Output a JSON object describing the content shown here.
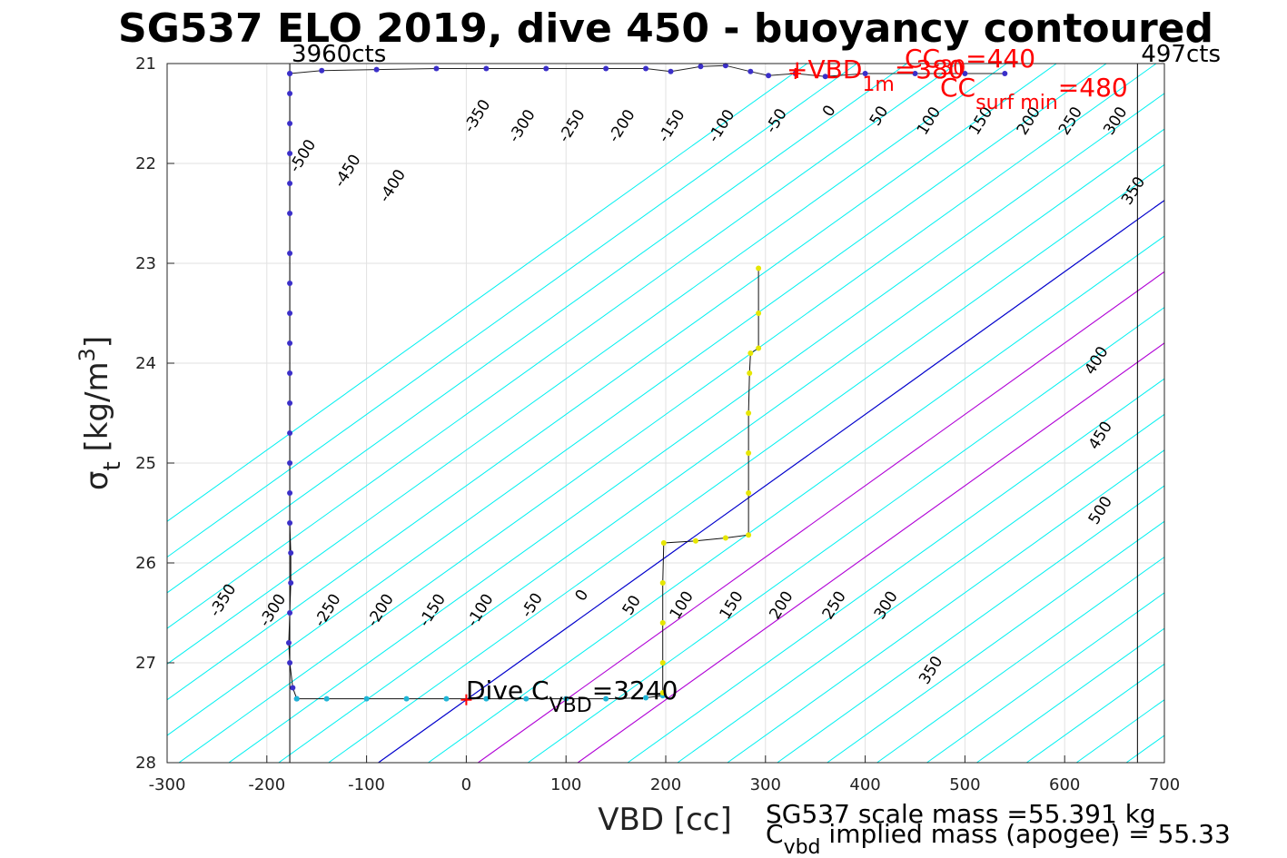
{
  "chart_data": {
    "type": "scatter",
    "title": "SG537 ELO 2019, dive 450 - buoyancy contoured",
    "xlabel": "VBD [cc]",
    "ylabel_main": "σ",
    "ylabel_sub": "t",
    "ylabel_unit": " [kg/m",
    "ylabel_sup": "3",
    "ylabel_close": "]",
    "xlim": [
      -300,
      700
    ],
    "ylim": [
      21,
      28
    ],
    "y_reversed": true,
    "grid": true,
    "xticks": [
      -300,
      -200,
      -100,
      0,
      100,
      200,
      300,
      400,
      500,
      600,
      700
    ],
    "yticks": [
      21,
      22,
      23,
      24,
      25,
      26,
      27,
      28
    ],
    "buoyancy_contours": {
      "levels": [
        -550,
        -500,
        -450,
        -400,
        -350,
        -300,
        -250,
        -200,
        -150,
        -100,
        -50,
        0,
        50,
        100,
        150,
        200,
        250,
        300,
        350,
        400,
        450,
        500,
        550,
        600,
        650,
        700,
        750,
        800,
        850
      ],
      "zero_contour_color": "#0000cc",
      "highlight_levels": [
        100,
        200
      ],
      "highlight_color": "#b000d6",
      "contour_color": "#00f0f0",
      "labels_upper": [
        {
          "text": "-500",
          "x": -160,
          "y": 21.95
        },
        {
          "text": "-450",
          "x": -115,
          "y": 22.1
        },
        {
          "text": "-400",
          "x": -70,
          "y": 22.25
        },
        {
          "text": "-350",
          "x": 15,
          "y": 21.55
        },
        {
          "text": "-300",
          "x": 60,
          "y": 21.65
        },
        {
          "text": "-250",
          "x": 110,
          "y": 21.65
        },
        {
          "text": "-200",
          "x": 160,
          "y": 21.65
        },
        {
          "text": "-150",
          "x": 210,
          "y": 21.65
        },
        {
          "text": "-100",
          "x": 260,
          "y": 21.65
        },
        {
          "text": "-50",
          "x": 315,
          "y": 21.6
        },
        {
          "text": "0",
          "x": 368,
          "y": 21.5
        },
        {
          "text": "50",
          "x": 418,
          "y": 21.55
        },
        {
          "text": "100",
          "x": 468,
          "y": 21.6
        },
        {
          "text": "150",
          "x": 520,
          "y": 21.6
        },
        {
          "text": "200",
          "x": 568,
          "y": 21.6
        },
        {
          "text": "250",
          "x": 610,
          "y": 21.6
        },
        {
          "text": "300",
          "x": 655,
          "y": 21.6
        },
        {
          "text": "350",
          "x": 673,
          "y": 22.3
        },
        {
          "text": "400",
          "x": 636,
          "y": 24.0
        },
        {
          "text": "450",
          "x": 640,
          "y": 24.75
        },
        {
          "text": "500",
          "x": 640,
          "y": 25.5
        }
      ],
      "labels_lower": [
        {
          "text": "-350",
          "x": -240,
          "y": 26.4
        },
        {
          "text": "-300",
          "x": -190,
          "y": 26.5
        },
        {
          "text": "-250",
          "x": -135,
          "y": 26.5
        },
        {
          "text": "-200",
          "x": -82,
          "y": 26.5
        },
        {
          "text": "-150",
          "x": -30,
          "y": 26.5
        },
        {
          "text": "-100",
          "x": 18,
          "y": 26.5
        },
        {
          "text": "-50",
          "x": 70,
          "y": 26.45
        },
        {
          "text": "0",
          "x": 120,
          "y": 26.35
        },
        {
          "text": "50",
          "x": 170,
          "y": 26.45
        },
        {
          "text": "100",
          "x": 220,
          "y": 26.45
        },
        {
          "text": "150",
          "x": 270,
          "y": 26.45
        },
        {
          "text": "200",
          "x": 320,
          "y": 26.45
        },
        {
          "text": "250",
          "x": 373,
          "y": 26.45
        },
        {
          "text": "300",
          "x": 425,
          "y": 26.45
        },
        {
          "text": "350",
          "x": 470,
          "y": 27.1
        }
      ]
    },
    "series": [
      {
        "name": "descent",
        "color": "#3b2fc9",
        "points": [
          [
            -177,
            21.1
          ],
          [
            -177,
            21.3
          ],
          [
            -177,
            21.6
          ],
          [
            -177,
            21.9
          ],
          [
            -177,
            22.2
          ],
          [
            -177,
            22.5
          ],
          [
            -177,
            22.9
          ],
          [
            -177,
            23.2
          ],
          [
            -177,
            23.5
          ],
          [
            -177,
            23.8
          ],
          [
            -177,
            24.1
          ],
          [
            -177,
            24.4
          ],
          [
            -177,
            24.7
          ],
          [
            -177,
            25.0
          ],
          [
            -177,
            25.3
          ],
          [
            -177,
            25.6
          ],
          [
            -176,
            25.9
          ],
          [
            -176,
            26.2
          ],
          [
            -177,
            26.5
          ],
          [
            -178,
            26.8
          ],
          [
            -177,
            27.0
          ],
          [
            -174,
            27.25
          ],
          [
            -170,
            27.36
          ]
        ]
      },
      {
        "name": "bottom",
        "color": "#1fb5d6",
        "points": [
          [
            -170,
            27.36
          ],
          [
            -140,
            27.36
          ],
          [
            -100,
            27.36
          ],
          [
            -60,
            27.36
          ],
          [
            -20,
            27.36
          ],
          [
            20,
            27.36
          ],
          [
            60,
            27.36
          ],
          [
            100,
            27.36
          ],
          [
            140,
            27.36
          ],
          [
            180,
            27.35
          ],
          [
            197,
            27.33
          ]
        ]
      },
      {
        "name": "ascent",
        "color": "#e6e600",
        "points": [
          [
            197,
            27.3
          ],
          [
            197,
            27.0
          ],
          [
            197,
            26.6
          ],
          [
            197,
            26.2
          ],
          [
            198,
            25.8
          ],
          [
            230,
            25.78
          ],
          [
            260,
            25.75
          ],
          [
            283,
            25.72
          ],
          [
            283,
            25.3
          ],
          [
            283,
            24.9
          ],
          [
            283,
            24.5
          ],
          [
            284,
            24.1
          ],
          [
            285,
            23.9
          ],
          [
            293,
            23.85
          ],
          [
            293,
            23.5
          ],
          [
            293,
            23.05
          ]
        ]
      },
      {
        "name": "surface",
        "color": "#3b2fc9",
        "points": [
          [
            -177,
            21.1
          ],
          [
            -145,
            21.07
          ],
          [
            -90,
            21.06
          ],
          [
            -30,
            21.05
          ],
          [
            20,
            21.05
          ],
          [
            80,
            21.05
          ],
          [
            140,
            21.05
          ],
          [
            180,
            21.05
          ],
          [
            205,
            21.08
          ],
          [
            235,
            21.03
          ],
          [
            260,
            21.02
          ],
          [
            285,
            21.08
          ],
          [
            303,
            21.12
          ],
          [
            330,
            21.1
          ],
          [
            360,
            21.13
          ],
          [
            400,
            21.1
          ],
          [
            450,
            21.1
          ],
          [
            500,
            21.1
          ],
          [
            540,
            21.1
          ]
        ]
      }
    ],
    "vlines": [
      {
        "x": -177,
        "label": "3960cts"
      },
      {
        "x": 673,
        "label": "497cts"
      }
    ],
    "annotations": {
      "dive_main": "Dive C",
      "dive_sub": "VBD",
      "dive_value": "=3240",
      "dive_marker": [
        0,
        27.37
      ],
      "vbd_main": "+VBD",
      "vbd_sub": "1m",
      "vbd_value": "=380",
      "vbd_marker": [
        330,
        21.1
      ],
      "cc30_main": "CC",
      "cc30_sub": "30",
      "cc30_value": "=440",
      "ccsurf_main": "CC",
      "ccsurf_sub": "surf min",
      "ccsurf_value": "=480"
    },
    "footer_line1": "SG537 scale mass =55.391 kg",
    "footer_line2_main": "C",
    "footer_line2_sub": "vbd",
    "footer_line2_rest": " implied mass (apogee) = 55.33"
  }
}
